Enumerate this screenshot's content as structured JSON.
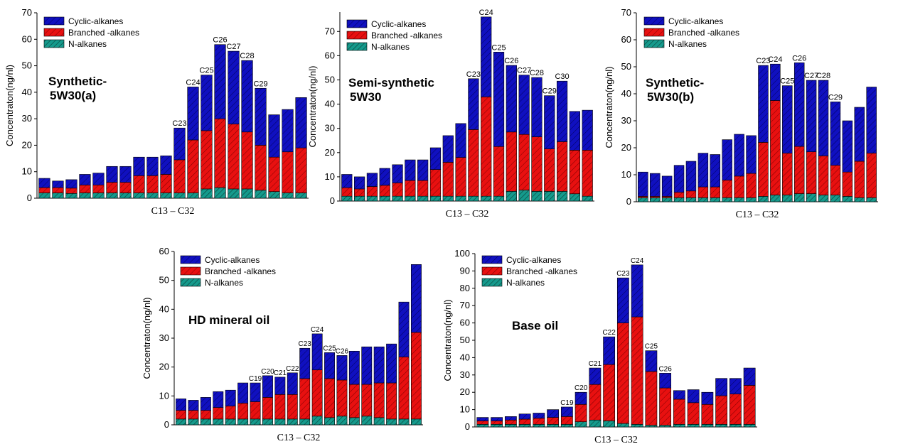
{
  "colors": {
    "cyclic": "#1010c0",
    "branched": "#e81010",
    "nalk": "#159a8c",
    "edge": "#000000"
  },
  "legend_labels": [
    "Cyclic-alkanes",
    "Branched -alkanes",
    "N-alkanes"
  ],
  "chart_data": [
    {
      "type": "bar",
      "stacked": true,
      "title": "Synthetic-\n5W30(a)",
      "xlabel": "C13    –    C32",
      "ylabel": "Concentraton(ng/nl)",
      "ylim": [
        0,
        70
      ],
      "yticks": [
        0,
        10,
        20,
        30,
        40,
        50,
        60,
        70
      ],
      "categories": [
        "C13",
        "C14",
        "C15",
        "C16",
        "C17",
        "C18",
        "C19",
        "C20",
        "C21",
        "C22",
        "C23",
        "C24",
        "C25",
        "C26",
        "C27",
        "C28",
        "C29",
        "C30",
        "C31",
        "C32"
      ],
      "series": [
        {
          "name": "N-alkanes",
          "values": [
            2,
            2,
            1.8,
            2,
            2,
            2,
            2,
            2,
            2,
            2,
            2,
            2,
            3.5,
            4,
            3.5,
            3.5,
            3,
            2.5,
            2,
            2
          ]
        },
        {
          "name": "Branched -alkanes",
          "values": [
            2,
            2,
            2,
            3,
            3,
            4,
            4,
            6.5,
            6.5,
            7,
            12.5,
            20,
            22,
            26,
            24.5,
            21.5,
            17,
            13,
            15.5,
            17
          ]
        },
        {
          "name": "Cyclic-alkanes",
          "values": [
            3.5,
            2.5,
            3.2,
            4,
            4.5,
            6,
            6,
            7,
            7,
            7,
            12,
            20,
            21,
            28,
            27.5,
            27,
            21.5,
            16,
            16,
            19
          ]
        }
      ],
      "data_labels": [
        "C23",
        "C24",
        "C25",
        "C26",
        "C27",
        "C28",
        "C29"
      ]
    },
    {
      "type": "bar",
      "stacked": true,
      "title": "Semi-synthetic\n5W30",
      "xlabel": "C13    –    C32",
      "ylabel": "Concentraton(ng/nl)",
      "ylim": [
        0,
        78
      ],
      "yticks": [
        0,
        10,
        20,
        30,
        40,
        50,
        60,
        70
      ],
      "categories": [
        "C13",
        "C14",
        "C15",
        "C16",
        "C17",
        "C18",
        "C19",
        "C20",
        "C21",
        "C22",
        "C23",
        "C24",
        "C25",
        "C26",
        "C27",
        "C28",
        "C29",
        "C30",
        "C31",
        "C32"
      ],
      "series": [
        {
          "name": "N-alkanes",
          "values": [
            2,
            2,
            2,
            2,
            2,
            2,
            2,
            2,
            2,
            2,
            2,
            2,
            2,
            4,
            4.5,
            4,
            4,
            4,
            3,
            2
          ]
        },
        {
          "name": "Branched -alkanes",
          "values": [
            3.5,
            3,
            4,
            4.5,
            5.5,
            6.5,
            6.5,
            11,
            14,
            16,
            27.5,
            41,
            20.5,
            24.5,
            23,
            22.5,
            17.5,
            20.5,
            18,
            19
          ]
        },
        {
          "name": "Cyclic-alkanes",
          "values": [
            5.5,
            5,
            5.5,
            7,
            7.5,
            8.5,
            8.5,
            9,
            11,
            14,
            21,
            33,
            39,
            27.5,
            24.5,
            24.5,
            22,
            25,
            16,
            16.5
          ]
        }
      ],
      "data_labels": [
        "C23",
        "C24",
        "C25",
        "C26",
        "C27",
        "C28",
        "C29",
        "C30"
      ]
    },
    {
      "type": "bar",
      "stacked": true,
      "title": "Synthetic-\n5W30(b)",
      "xlabel": "C13    –    C32",
      "ylabel": "Concentraton(ng/nl)",
      "ylim": [
        0,
        70
      ],
      "yticks": [
        0,
        10,
        20,
        30,
        40,
        50,
        60,
        70
      ],
      "categories": [
        "C13",
        "C14",
        "C15",
        "C16",
        "C17",
        "C18",
        "C19",
        "C20",
        "C21",
        "C22",
        "C23",
        "C24",
        "C25",
        "C26",
        "C27",
        "C28",
        "C29",
        "C30",
        "C31",
        "C32"
      ],
      "series": [
        {
          "name": "N-alkanes",
          "values": [
            1.5,
            1.5,
            1.5,
            1.5,
            1.5,
            1.5,
            1.5,
            1.5,
            1.5,
            1.5,
            2,
            2.5,
            2.5,
            3,
            3,
            2.5,
            2.5,
            2,
            1.5,
            1.5
          ]
        },
        {
          "name": "Branched -alkanes",
          "values": [
            0.5,
            0.5,
            0.5,
            2,
            2.5,
            4,
            4,
            6.5,
            8,
            9,
            20,
            35,
            15.5,
            17.5,
            15.5,
            14.5,
            11,
            9,
            13.5,
            16.5
          ]
        },
        {
          "name": "Cyclic-alkanes",
          "values": [
            9,
            8.5,
            7.5,
            10,
            11,
            12.5,
            12,
            15,
            15.5,
            14,
            28.5,
            13.5,
            25,
            31,
            26.5,
            28,
            23.5,
            19,
            20,
            24.5
          ]
        }
      ],
      "data_labels": [
        "C23",
        "C24",
        "C25",
        "C26",
        "C27",
        "C28",
        "C29"
      ]
    },
    {
      "type": "bar",
      "stacked": true,
      "title": "HD mineral oil",
      "xlabel": "C13    –    C32",
      "ylabel": "Concentraton(ng/nl)",
      "ylim": [
        0,
        60
      ],
      "yticks": [
        0,
        10,
        20,
        30,
        40,
        50,
        60
      ],
      "categories": [
        "C13",
        "C14",
        "C15",
        "C16",
        "C17",
        "C18",
        "C19",
        "C20",
        "C21",
        "C22",
        "C23",
        "C24",
        "C25",
        "C26",
        "C27",
        "C28",
        "C29",
        "C30",
        "C31",
        "C32"
      ],
      "series": [
        {
          "name": "N-alkanes",
          "values": [
            2,
            2,
            2,
            2,
            2,
            2,
            2,
            2,
            2,
            2,
            2,
            3,
            2.5,
            3,
            2.5,
            3,
            2.5,
            2,
            2,
            2
          ]
        },
        {
          "name": "Branched -alkanes",
          "values": [
            3,
            3,
            3,
            4,
            4.5,
            5.5,
            6,
            7.5,
            8.5,
            8.5,
            14,
            16,
            13.5,
            12.5,
            11.5,
            11,
            12,
            12.5,
            21.5,
            30
          ]
        },
        {
          "name": "Cyclic-alkanes",
          "values": [
            4,
            3.5,
            4.5,
            5.5,
            5.5,
            7,
            6.5,
            7.5,
            6,
            7.5,
            10.5,
            12.5,
            9,
            8.5,
            11.5,
            13,
            12.5,
            13.5,
            19,
            23.5
          ]
        }
      ],
      "data_labels": [
        "C19",
        "C20",
        "C21",
        "C22",
        "C23",
        "C24",
        "C25",
        "C26"
      ]
    },
    {
      "type": "bar",
      "stacked": true,
      "title": "Base oil",
      "xlabel": "C13    –    C32",
      "ylabel": "Concentraton(ng/nl)",
      "ylim": [
        0,
        100
      ],
      "yticks": [
        0,
        10,
        20,
        30,
        40,
        50,
        60,
        70,
        80,
        90,
        100
      ],
      "categories": [
        "C13",
        "C14",
        "C15",
        "C16",
        "C17",
        "C18",
        "C19",
        "C20",
        "C21",
        "C22",
        "C23",
        "C24",
        "C25",
        "C26",
        "C27",
        "C28",
        "C29",
        "C30",
        "C31",
        "C32"
      ],
      "series": [
        {
          "name": "N-alkanes",
          "values": [
            1.5,
            1.5,
            1.5,
            1.5,
            1.5,
            1.5,
            1.5,
            3,
            4,
            3.5,
            2,
            1.5,
            1,
            1,
            1.5,
            1.5,
            1.5,
            1.5,
            1.5,
            1.5
          ]
        },
        {
          "name": "Branched -alkanes",
          "values": [
            2,
            2,
            2.5,
            3,
            3.5,
            4,
            4.5,
            10,
            20.5,
            32.5,
            58,
            62,
            31,
            21.5,
            14.5,
            12.5,
            11.5,
            16.5,
            17.5,
            22.5
          ]
        },
        {
          "name": "Cyclic-alkanes",
          "values": [
            2,
            2,
            2,
            3,
            3,
            4.5,
            5.5,
            7,
            9.5,
            16,
            26,
            30,
            12,
            8.5,
            5,
            7.5,
            7,
            10,
            9,
            10
          ]
        }
      ],
      "data_labels": [
        "C19",
        "C20",
        "C21",
        "C22",
        "C23",
        "C24",
        "C25",
        "C26"
      ]
    }
  ]
}
